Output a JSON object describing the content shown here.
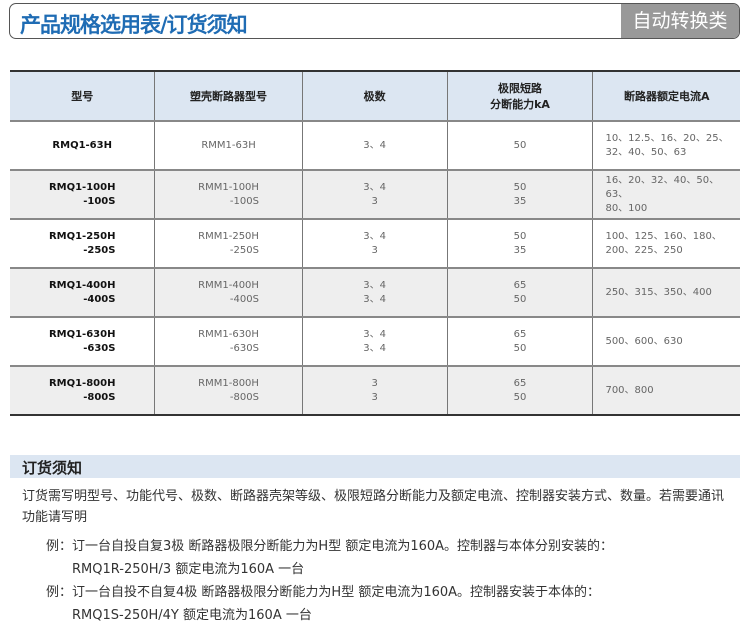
{
  "header": {
    "title": "产品规格选用表/订货须知",
    "category": "自动转换类"
  },
  "table": {
    "columns": [
      "型号",
      "塑壳断路器型号",
      "极数",
      "极限短路\n分断能力kA",
      "断路器额定电流A"
    ],
    "rows": [
      {
        "model": [
          "RMQ1-63H"
        ],
        "breaker": [
          "RMM1-63H"
        ],
        "poles": [
          "3、4"
        ],
        "capacity": [
          "50"
        ],
        "current": [
          "10、12.5、16、20、25、",
          "32、40、50、63"
        ]
      },
      {
        "model": [
          "RMQ1-100H",
          "-100S"
        ],
        "breaker": [
          "RMM1-100H",
          "-100S"
        ],
        "poles": [
          "3、4",
          "3"
        ],
        "capacity": [
          "50",
          "35"
        ],
        "current": [
          "16、20、32、40、50、63、",
          "80、100"
        ]
      },
      {
        "model": [
          "RMQ1-250H",
          "-250S"
        ],
        "breaker": [
          "RMM1-250H",
          "-250S"
        ],
        "poles": [
          "3、4",
          "3"
        ],
        "capacity": [
          "50",
          "35"
        ],
        "current": [
          "100、125、160、180、",
          "200、225、250"
        ]
      },
      {
        "model": [
          "RMQ1-400H",
          "-400S"
        ],
        "breaker": [
          "RMM1-400H",
          "-400S"
        ],
        "poles": [
          "3、4",
          "3、4"
        ],
        "capacity": [
          "65",
          "50"
        ],
        "current": [
          "250、315、350、400"
        ]
      },
      {
        "model": [
          "RMQ1-630H",
          "-630S"
        ],
        "breaker": [
          "RMM1-630H",
          "-630S"
        ],
        "poles": [
          "3、4",
          "3、4"
        ],
        "capacity": [
          "65",
          "50"
        ],
        "current": [
          "500、600、630"
        ]
      },
      {
        "model": [
          "RMQ1-800H",
          "-800S"
        ],
        "breaker": [
          "RMM1-800H",
          "-800S"
        ],
        "poles": [
          "3",
          "3"
        ],
        "capacity": [
          "65",
          "50"
        ],
        "current": [
          "700、800"
        ]
      }
    ]
  },
  "order": {
    "title": "订货须知",
    "intro": "订货需写明型号、功能代号、极数、断路器壳架等级、极限短路分断能力及额定电流、控制器安装方式、数量。若需要通讯功能请写明",
    "examples": [
      {
        "label": "例：",
        "line1": "订一台自投自复3极 断路器极限分断能力为H型 额定电流为160A。控制器与本体分别安装的：",
        "line2": "RMQ1R-250H/3  额定电流为160A   一台"
      },
      {
        "label": "例：",
        "line1": "订一台自投不自复4极 断路器极限分断能力为H型 额定电流为160A。控制器安装于本体的：",
        "line2": "RMQ1S-250H/4Y  额定电流为160A   一台"
      }
    ]
  }
}
